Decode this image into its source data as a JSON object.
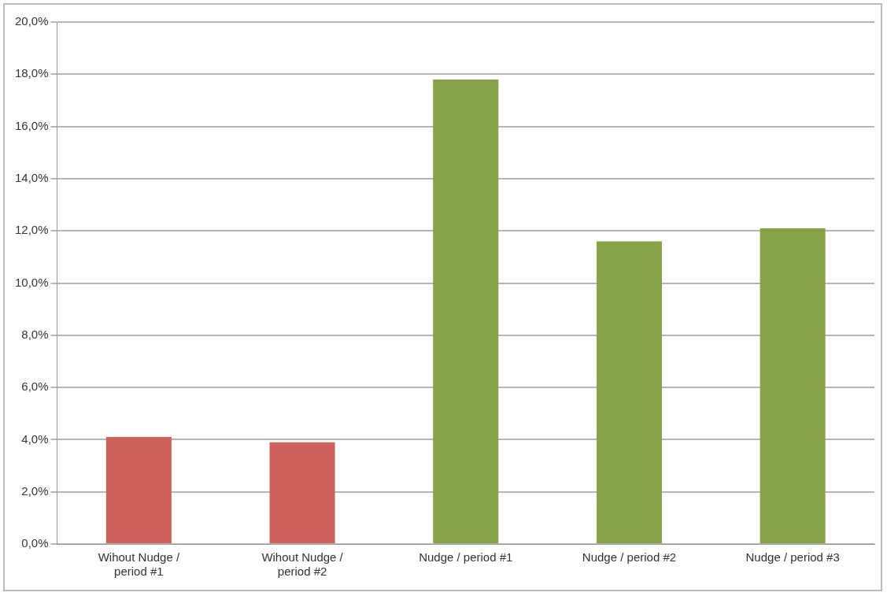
{
  "chart_data": {
    "type": "bar",
    "categories": [
      "Wihout Nudge / period #1",
      "Wihout Nudge / period #2",
      "Nudge / period #1",
      "Nudge / period #2",
      "Nudge / period #3"
    ],
    "values": [
      4.1,
      3.9,
      17.8,
      11.6,
      12.1
    ],
    "colors": [
      "#cd625d",
      "#cd625d",
      "#86a34a",
      "#86a34a",
      "#86a34a"
    ],
    "ylim": [
      0,
      20
    ],
    "yticks": [
      {
        "value": 0,
        "label": "0,0%"
      },
      {
        "value": 2,
        "label": "2,0%"
      },
      {
        "value": 4,
        "label": "4,0%"
      },
      {
        "value": 6,
        "label": "6,0%"
      },
      {
        "value": 8,
        "label": "8,0%"
      },
      {
        "value": 10,
        "label": "10,0%"
      },
      {
        "value": 12,
        "label": "12,0%"
      },
      {
        "value": 14,
        "label": "14,0%"
      },
      {
        "value": 16,
        "label": "16,0%"
      },
      {
        "value": 18,
        "label": "18,0%"
      },
      {
        "value": 20,
        "label": "20,0%"
      }
    ],
    "grid": "y",
    "legend": false
  }
}
